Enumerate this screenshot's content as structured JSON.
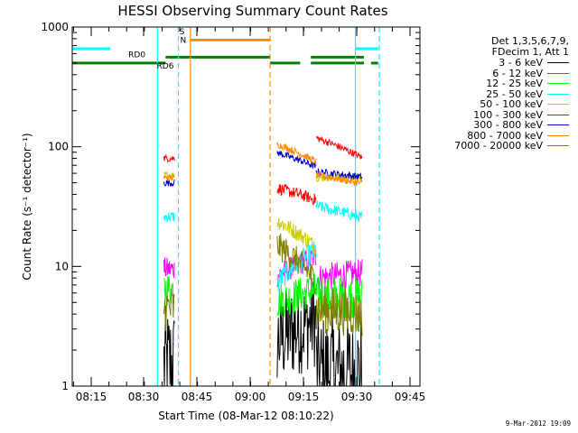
{
  "chart_data": {
    "type": "line",
    "title": "HESSI Observing Summary Count Rates",
    "xlabel": "Start Time (08-Mar-12 08:10:22)",
    "ylabel": "Count Rate (s⁻¹ detector⁻¹)",
    "x_range_minutes": [
      8.4,
      46.0
    ],
    "ylim": [
      1,
      1000
    ],
    "yscale": "log",
    "x_ticks": [
      "08:15",
      "08:30",
      "08:45",
      "09:00",
      "09:15",
      "09:30",
      "09:45"
    ],
    "y_ticks": [
      "1",
      "10",
      "100",
      "1000"
    ],
    "legend_header": [
      "Det 1,3,5,6,7,9,",
      "FDecim 1, Att 1"
    ],
    "series": [
      {
        "name": "3 - 6 keV",
        "color": "#000000",
        "segments": [
          {
            "from": 25.5,
            "to": 28.5,
            "level": 1.5,
            "noise": 0.5
          },
          {
            "from": 57.5,
            "to": 68.5,
            "level": 4.0,
            "trend": [
              0.6,
              0.9
            ],
            "noise": 0.4
          },
          {
            "from": 68.5,
            "to": 81.5,
            "level": 1.3,
            "noise": 0.5
          }
        ]
      },
      {
        "name": "6 - 12 keV",
        "color": "#ff00ff",
        "segments": [
          {
            "from": 25.5,
            "to": 28.5,
            "level": 9.5,
            "noise": 0.1
          },
          {
            "from": 57.5,
            "to": 68.5,
            "level": 12.0,
            "trend": [
              0.7,
              1.0
            ],
            "noise": 0.1
          },
          {
            "from": 68.5,
            "to": 81.5,
            "level": 8.0,
            "trend": [
              1.0,
              1.1
            ],
            "noise": 0.12
          }
        ]
      },
      {
        "name": "12 - 25 keV",
        "color": "#00ff00",
        "segments": [
          {
            "from": 25.5,
            "to": 28.5,
            "level": 6.5,
            "noise": 0.15
          },
          {
            "from": 57.5,
            "to": 68.5,
            "level": 8.5,
            "trend": [
              0.6,
              0.75
            ],
            "noise": 0.15
          },
          {
            "from": 68.5,
            "to": 81.5,
            "level": 5.5,
            "trend": [
              1.0,
              1.0
            ],
            "noise": 0.18
          }
        ]
      },
      {
        "name": "25 - 50 keV",
        "color": "#00ffff",
        "segments": [
          {
            "from": 25.5,
            "to": 28.5,
            "level": 26,
            "noise": 0.05
          },
          {
            "from": 57.5,
            "to": 68.5,
            "level": 9.0,
            "trend": [
              0.8,
              1.5
            ],
            "noise": 0.1
          },
          {
            "from": 68.5,
            "to": 81.5,
            "level": 32,
            "trend": [
              1.0,
              0.8
            ],
            "noise": 0.05
          }
        ]
      },
      {
        "name": "50 - 100 keV",
        "color": "#cccc00",
        "segments": [
          {
            "from": 25.5,
            "to": 28.5,
            "level": 58,
            "noise": 0.03
          },
          {
            "from": 57.5,
            "to": 68.5,
            "level": 24,
            "trend": [
              1.0,
              0.6
            ],
            "noise": 0.07
          },
          {
            "from": 68.5,
            "to": 81.5,
            "level": 55,
            "noise": 0.03
          }
        ]
      },
      {
        "name": "100 - 300 keV",
        "color": "#ff0000",
        "segments": [
          {
            "from": 25.5,
            "to": 28.5,
            "level": 80,
            "noise": 0.03
          },
          {
            "from": 57.5,
            "to": 68.5,
            "level": 45,
            "trend": [
              1.0,
              0.8
            ],
            "noise": 0.05
          },
          {
            "from": 68.5,
            "to": 81.5,
            "level": 108,
            "trend": [
              1.1,
              0.75
            ],
            "noise": 0.03
          }
        ]
      },
      {
        "name": "300 - 800 keV",
        "color": "#0000cc",
        "segments": [
          {
            "from": 25.5,
            "to": 28.5,
            "level": 50,
            "noise": 0.03
          },
          {
            "from": 57.5,
            "to": 68.5,
            "level": 85,
            "trend": [
              1.05,
              0.8
            ],
            "noise": 0.03
          },
          {
            "from": 68.5,
            "to": 81.5,
            "level": 62,
            "trend": [
              1.0,
              0.9
            ],
            "noise": 0.03
          }
        ]
      },
      {
        "name": "800 - 7000 keV",
        "color": "#ff8800",
        "segments": [
          {
            "from": 25.5,
            "to": 28.5,
            "level": 55,
            "noise": 0.03
          },
          {
            "from": 57.5,
            "to": 68.5,
            "level": 100,
            "trend": [
              1.05,
              0.75
            ],
            "noise": 0.03
          },
          {
            "from": 68.5,
            "to": 81.5,
            "level": 58,
            "trend": [
              1.0,
              0.85
            ],
            "noise": 0.03
          }
        ]
      },
      {
        "name": "7000 - 20000 keV",
        "color": "#808000",
        "segments": [
          {
            "from": 25.5,
            "to": 28.5,
            "level": 4.5,
            "noise": 0.2
          },
          {
            "from": 57.5,
            "to": 68.5,
            "level": 15,
            "trend": [
              1.0,
              0.5
            ],
            "noise": 0.12
          },
          {
            "from": 68.5,
            "to": 81.5,
            "level": 4.0,
            "trend": [
              1.1,
              1.0
            ],
            "noise": 0.2
          }
        ]
      }
    ],
    "flags": {
      "saa_bar": {
        "color": "#00ffff",
        "intervals": [
          [
            -2,
            10.4
          ],
          [
            79.6,
            86.0
          ]
        ],
        "level": 660
      },
      "s_bar": {
        "color": "#ff8800",
        "intervals": [
          [
            33.0,
            55.5
          ]
        ],
        "level": 780,
        "label": "S"
      },
      "n_bar": {
        "color": "#00ffff",
        "label": "N"
      },
      "rd0_bar": {
        "color": "#008000",
        "intervals": [
          [
            -2,
            26.0
          ],
          [
            55.5,
            64.0
          ],
          [
            67.0,
            82.0
          ],
          [
            84.0,
            86.0
          ]
        ],
        "level": 500,
        "label": "RD0"
      },
      "rd6_bar": {
        "color": "#008000",
        "intervals": [
          [
            26.0,
            55.5
          ],
          [
            67.0,
            82.0
          ]
        ],
        "level": 560,
        "label": "RD6"
      }
    },
    "vlines": [
      {
        "x": 23.7,
        "color": "#00ffff",
        "style": "solid"
      },
      {
        "x": 29.6,
        "color": "#00ffff",
        "style": "dashed"
      },
      {
        "x": 33.0,
        "color": "#ff8800",
        "style": "solid"
      },
      {
        "x": 55.5,
        "color": "#ff8800",
        "style": "dashed"
      },
      {
        "x": 79.6,
        "color": "#00ffff",
        "style": "solid"
      },
      {
        "x": 86.3,
        "color": "#00ffff",
        "style": "dashed"
      },
      {
        "x": -2.0,
        "color": "#00ffff",
        "style": "solid"
      }
    ]
  },
  "footer": {
    "stamp": "9-Mar-2012 19:09"
  }
}
